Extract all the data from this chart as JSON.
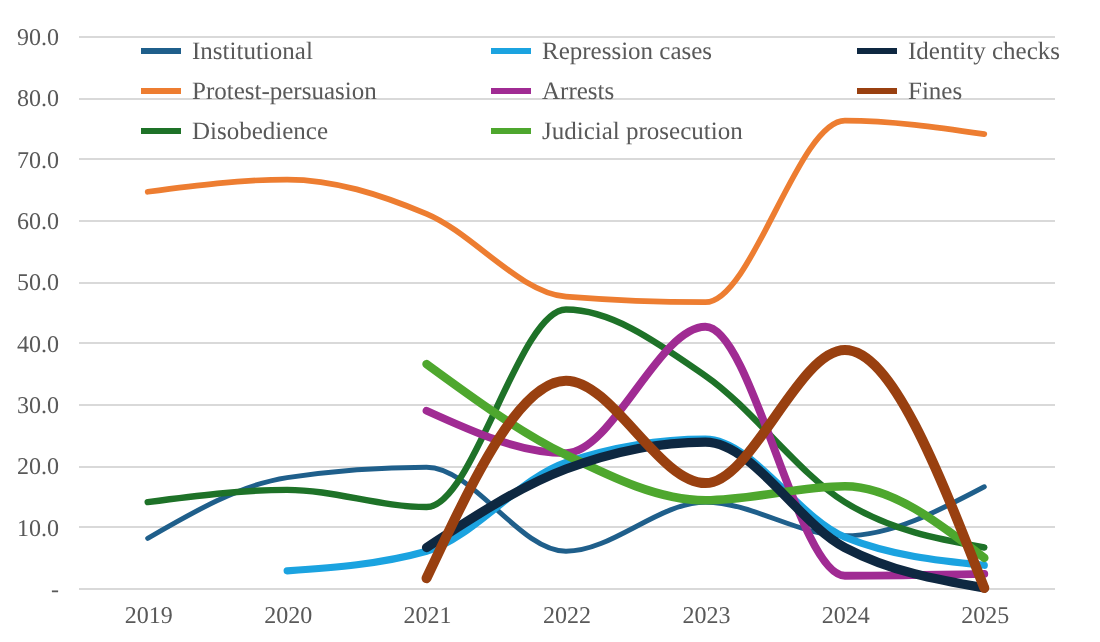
{
  "chart_data": {
    "type": "line",
    "categories": [
      "2019",
      "2020",
      "2021",
      "2022",
      "2023",
      "2024",
      "2025"
    ],
    "series": [
      {
        "name": "Institutional",
        "color": "#1f5f8b",
        "values": [
          8.1,
          18,
          19.7,
          6,
          14,
          8.5,
          16.5
        ]
      },
      {
        "name": "Protest-persuasion",
        "color": "#ed7d31",
        "values": [
          64.6,
          66.6,
          61,
          47.5,
          46.6,
          76.2,
          74
        ]
      },
      {
        "name": "Disobedience",
        "color": "#1e7228",
        "values": [
          14,
          16,
          13.2,
          45.4,
          34.6,
          14,
          6.6
        ]
      },
      {
        "name": "Repression cases",
        "color": "#1ba3e0",
        "values": [
          null,
          2.8,
          6,
          20.5,
          24.3,
          8.3,
          3.7
        ]
      },
      {
        "name": "Arrests",
        "color": "#a02b93",
        "values": [
          null,
          null,
          28.9,
          22,
          42.6,
          2,
          2.3
        ]
      },
      {
        "name": "Judicial prosecution",
        "color": "#4ea72e",
        "values": [
          null,
          null,
          36.5,
          21.7,
          14.3,
          16.6,
          4.9
        ]
      },
      {
        "name": "Identity checks",
        "color": "#0e2841",
        "values": [
          null,
          null,
          6.6,
          19.4,
          23.8,
          6.6,
          0
        ]
      },
      {
        "name": "Fines",
        "color": "#994010",
        "values": [
          null,
          null,
          1.6,
          33.8,
          17.1,
          38.8,
          0
        ]
      }
    ],
    "ylim": [
      0,
      90
    ],
    "yticks": [
      {
        "value": 0,
        "label": "-"
      },
      {
        "value": 10,
        "label": "10.0"
      },
      {
        "value": 20,
        "label": "20.0"
      },
      {
        "value": 30,
        "label": "30.0"
      },
      {
        "value": 40,
        "label": "40.0"
      },
      {
        "value": 50,
        "label": "50.0"
      },
      {
        "value": 60,
        "label": "60.0"
      },
      {
        "value": 70,
        "label": "70.0"
      },
      {
        "value": 80,
        "label": "80.0"
      },
      {
        "value": 90,
        "label": "90.0"
      }
    ],
    "grid": "y",
    "legend": "top",
    "marker": "none",
    "line_style": "solid"
  }
}
